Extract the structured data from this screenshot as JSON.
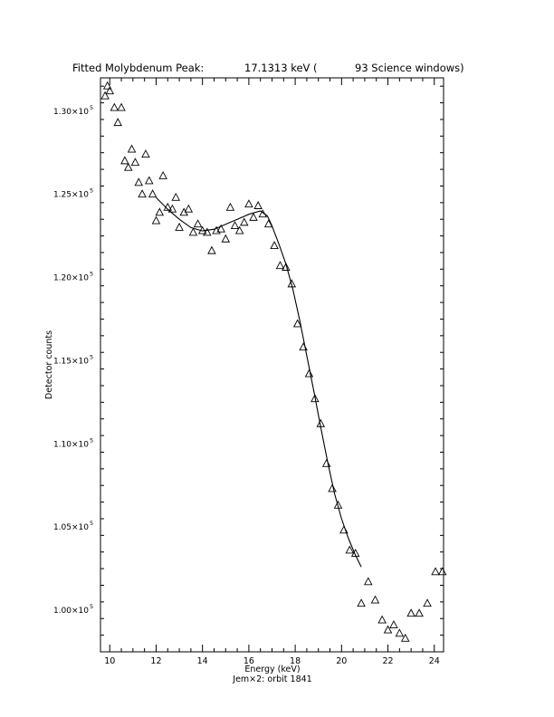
{
  "chart_data": {
    "type": "scatter",
    "title": {
      "left": "Fitted Molybdenum Peak:",
      "value": "17.1313 keV (",
      "windows": "93 Science windows)"
    },
    "xlabel": "Energy (keV)",
    "ylabel": "Detector counts",
    "footnote": "Jem×2: orbit 1841",
    "xlim": [
      9.6,
      24.4
    ],
    "ylim": [
      97500,
      132000
    ],
    "x_ticks": [
      {
        "v": 10,
        "label": "10"
      },
      {
        "v": 12,
        "label": "12"
      },
      {
        "v": 14,
        "label": "14"
      },
      {
        "v": 16,
        "label": "16"
      },
      {
        "v": 18,
        "label": "18"
      },
      {
        "v": 20,
        "label": "20"
      },
      {
        "v": 22,
        "label": "22"
      },
      {
        "v": 24,
        "label": "24"
      }
    ],
    "y_ticks": [
      {
        "v": 100000,
        "mant": "1.00×10",
        "exp": "5"
      },
      {
        "v": 105000,
        "mant": "1.05×10",
        "exp": "5"
      },
      {
        "v": 110000,
        "mant": "1.10×10",
        "exp": "5"
      },
      {
        "v": 115000,
        "mant": "1.15×10",
        "exp": "5"
      },
      {
        "v": 120000,
        "mant": "1.20×10",
        "exp": "5"
      },
      {
        "v": 125000,
        "mant": "1.25×10",
        "exp": "5"
      },
      {
        "v": 130000,
        "mant": "1.30×10",
        "exp": "5"
      }
    ],
    "grid": false,
    "legend": "none",
    "series": [
      {
        "marker": "triangle",
        "points": [
          [
            9.8,
            130900
          ],
          [
            9.9,
            131500
          ],
          [
            10.0,
            131200
          ],
          [
            10.2,
            130200
          ],
          [
            10.35,
            129300
          ],
          [
            10.5,
            130200
          ],
          [
            10.65,
            127000
          ],
          [
            10.8,
            126600
          ],
          [
            10.95,
            127700
          ],
          [
            11.1,
            126900
          ],
          [
            11.25,
            125700
          ],
          [
            11.4,
            125000
          ],
          [
            11.55,
            127400
          ],
          [
            11.7,
            125800
          ],
          [
            11.85,
            125000
          ],
          [
            12.0,
            123400
          ],
          [
            12.15,
            123900
          ],
          [
            12.3,
            126100
          ],
          [
            12.5,
            124200
          ],
          [
            12.7,
            124100
          ],
          [
            12.85,
            124800
          ],
          [
            13.0,
            123000
          ],
          [
            13.2,
            123900
          ],
          [
            13.4,
            124100
          ],
          [
            13.6,
            122700
          ],
          [
            13.8,
            123200
          ],
          [
            14.0,
            122800
          ],
          [
            14.2,
            122700
          ],
          [
            14.4,
            121600
          ],
          [
            14.6,
            122800
          ],
          [
            14.8,
            122900
          ],
          [
            15.0,
            122300
          ],
          [
            15.2,
            124200
          ],
          [
            15.4,
            123100
          ],
          [
            15.6,
            122800
          ],
          [
            15.8,
            123300
          ],
          [
            16.0,
            124400
          ],
          [
            16.2,
            123600
          ],
          [
            16.4,
            124300
          ],
          [
            16.6,
            123800
          ],
          [
            16.85,
            123200
          ],
          [
            17.1,
            121900
          ],
          [
            17.35,
            120700
          ],
          [
            17.6,
            120600
          ],
          [
            17.85,
            119600
          ],
          [
            18.1,
            117200
          ],
          [
            18.35,
            115800
          ],
          [
            18.6,
            114200
          ],
          [
            18.85,
            112700
          ],
          [
            19.1,
            111200
          ],
          [
            19.35,
            108800
          ],
          [
            19.6,
            107300
          ],
          [
            19.85,
            106300
          ],
          [
            20.1,
            104800
          ],
          [
            20.35,
            103600
          ],
          [
            20.6,
            103400
          ],
          [
            20.85,
            100400
          ],
          [
            21.15,
            101700
          ],
          [
            21.45,
            100600
          ],
          [
            21.75,
            99400
          ],
          [
            22.0,
            98800
          ],
          [
            22.25,
            99100
          ],
          [
            22.5,
            98600
          ],
          [
            22.75,
            98300
          ],
          [
            23.0,
            99800
          ],
          [
            23.35,
            99800
          ],
          [
            23.7,
            100400
          ],
          [
            24.05,
            102300
          ],
          [
            24.35,
            102300
          ]
        ]
      },
      {
        "marker": "line",
        "points": [
          [
            12.0,
            124800
          ],
          [
            12.5,
            124100
          ],
          [
            13.0,
            123500
          ],
          [
            13.5,
            123000
          ],
          [
            14.0,
            122800
          ],
          [
            14.5,
            122900
          ],
          [
            15.0,
            123200
          ],
          [
            15.5,
            123500
          ],
          [
            16.0,
            123800
          ],
          [
            16.5,
            124000
          ],
          [
            16.8,
            123700
          ],
          [
            17.0,
            123100
          ],
          [
            17.3,
            122000
          ],
          [
            17.6,
            120800
          ],
          [
            17.9,
            119300
          ],
          [
            18.2,
            117400
          ],
          [
            18.5,
            115300
          ],
          [
            18.8,
            113200
          ],
          [
            19.1,
            111000
          ],
          [
            19.4,
            108900
          ],
          [
            19.7,
            107000
          ],
          [
            20.0,
            105500
          ],
          [
            20.3,
            104300
          ],
          [
            20.6,
            103300
          ],
          [
            20.85,
            102600
          ]
        ]
      }
    ]
  }
}
